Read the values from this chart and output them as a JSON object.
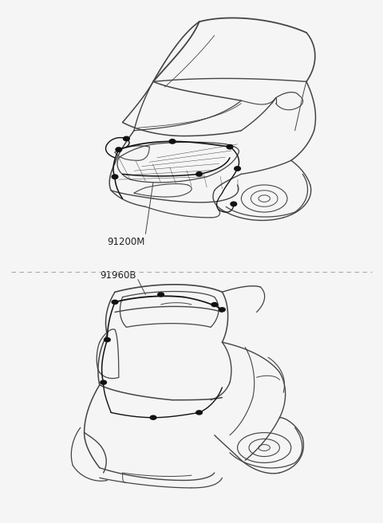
{
  "background_color": "#f5f5f5",
  "panel_bg": "#ffffff",
  "divider_color": "#aaaaaa",
  "label_top": "91200M",
  "label_bottom": "91960B",
  "label_color": "#222222",
  "line_color": "#444444",
  "wire_color": "#111111",
  "figsize": [
    4.8,
    6.56
  ],
  "dpi": 100
}
